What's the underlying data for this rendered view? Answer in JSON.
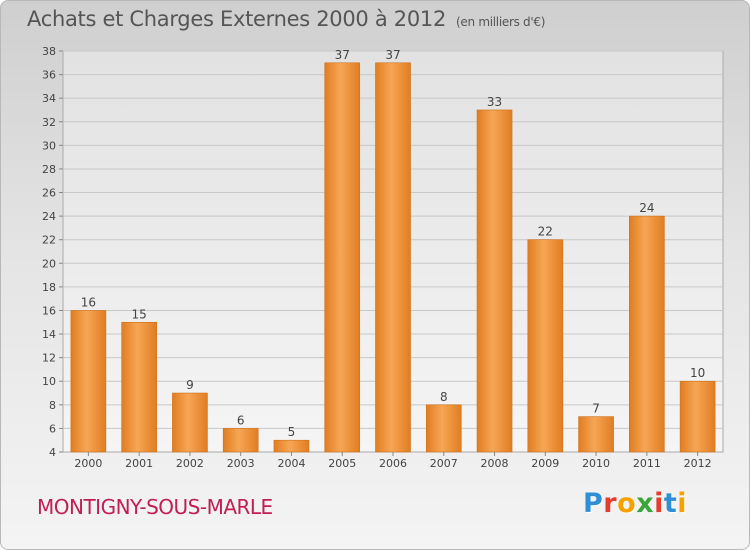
{
  "header": {
    "title": "Achats et Charges Externes 2000 à 2012",
    "subtitle": "(en milliers d'€)"
  },
  "footer": {
    "town": "MONTIGNY-SOUS-MARLE",
    "logo_letters": [
      "P",
      "r",
      "o",
      "x",
      "i",
      "t",
      "i"
    ],
    "logo_colors": [
      "#2f8fd5",
      "#e63c2e",
      "#f5a100",
      "#3aa63a",
      "#e63c2e",
      "#2f8fd5",
      "#f5a100"
    ]
  },
  "chart_data": {
    "type": "bar",
    "title": "Achats et Charges Externes 2000 à 2012",
    "subtitle": "(en milliers d'€)",
    "categories": [
      "2000",
      "2001",
      "2002",
      "2003",
      "2004",
      "2005",
      "2006",
      "2007",
      "2008",
      "2009",
      "2010",
      "2011",
      "2012"
    ],
    "values": [
      16,
      15,
      9,
      6,
      5,
      37,
      37,
      8,
      33,
      22,
      7,
      24,
      10
    ],
    "ylim": [
      4,
      38
    ],
    "yticks": [
      4,
      6,
      8,
      10,
      12,
      14,
      16,
      18,
      20,
      22,
      24,
      26,
      28,
      30,
      32,
      34,
      36,
      38
    ],
    "grid": true,
    "bar_color_light": "#f7a655",
    "bar_color_dark": "#e07d22",
    "xlabel": "",
    "ylabel": ""
  }
}
